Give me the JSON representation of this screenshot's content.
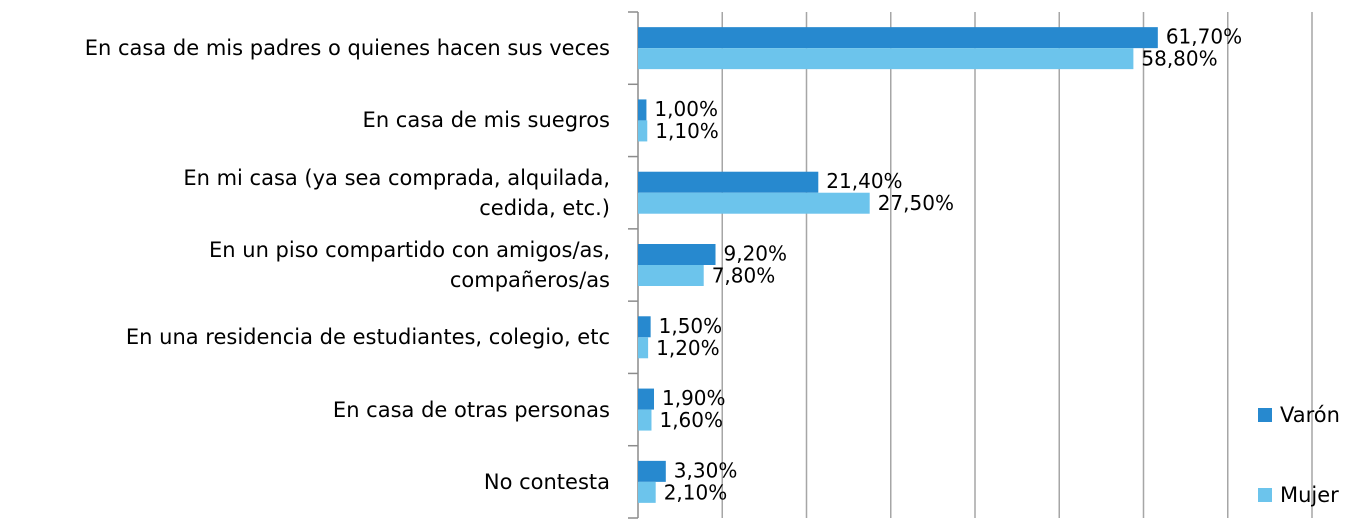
{
  "chart_data": {
    "type": "hbar",
    "categories": [
      "En casa de mis padres o quienes hacen sus veces",
      "En casa de mis suegros",
      "En mi casa (ya sea comprada, alquilada,\ncedida, etc.)",
      "En un piso compartido con amigos/as,\ncompañeros/as",
      "En una residencia de estudiantes, colegio, etc",
      "En casa de otras personas",
      "No contesta"
    ],
    "series": [
      {
        "name": "Varón",
        "color": "#2789cf",
        "values": [
          61.7,
          1.0,
          21.4,
          9.2,
          1.5,
          1.9,
          3.3
        ],
        "value_labels": [
          "61,70%",
          "1,00%",
          "21,40%",
          "9,20%",
          "1,50%",
          "1,90%",
          "3,30%"
        ]
      },
      {
        "name": "Mujer",
        "color": "#6cc4ec",
        "values": [
          58.8,
          1.1,
          27.5,
          7.8,
          1.2,
          1.6,
          2.1
        ],
        "value_labels": [
          "58,80%",
          "1,10%",
          "27,50%",
          "7,80%",
          "1,20%",
          "1,60%",
          "2,10%"
        ]
      }
    ],
    "xlim": [
      0,
      80
    ],
    "xticks": [
      0,
      10,
      20,
      30,
      40,
      50,
      60,
      70,
      80
    ],
    "grid": true,
    "legend": "right"
  }
}
